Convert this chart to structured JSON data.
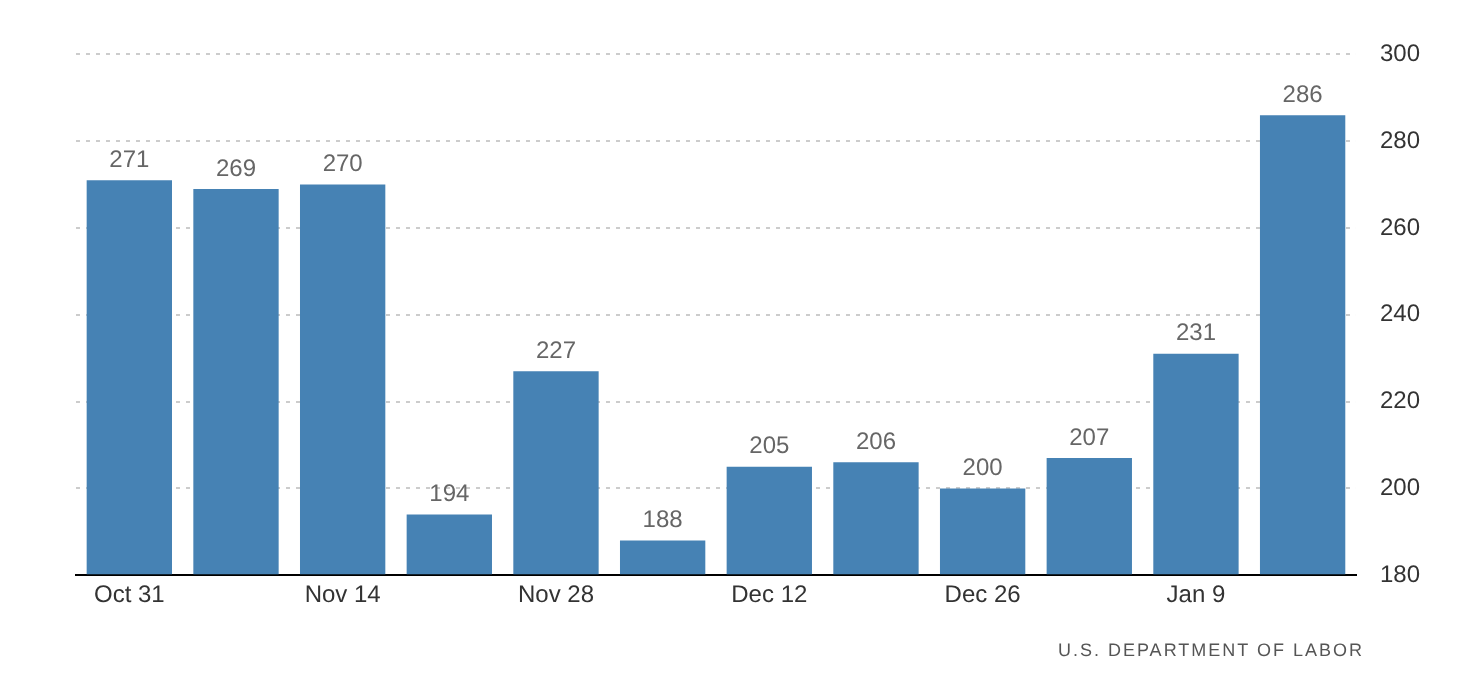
{
  "chart_data": {
    "type": "bar",
    "categories": [
      "Oct 31",
      null,
      "Nov 14",
      null,
      "Nov 28",
      null,
      "Dec 12",
      null,
      "Dec 26",
      null,
      "Jan 9",
      null
    ],
    "values": [
      271,
      269,
      270,
      194,
      227,
      188,
      205,
      206,
      200,
      207,
      231,
      286
    ],
    "color": "#4682b4",
    "ylim": [
      180,
      300
    ],
    "yticks": [
      180,
      200,
      220,
      240,
      260,
      280,
      300
    ],
    "grid": "y",
    "data_labels": true,
    "legend": false,
    "annotations": [
      "U.S. DEPARTMENT OF LABOR"
    ]
  }
}
